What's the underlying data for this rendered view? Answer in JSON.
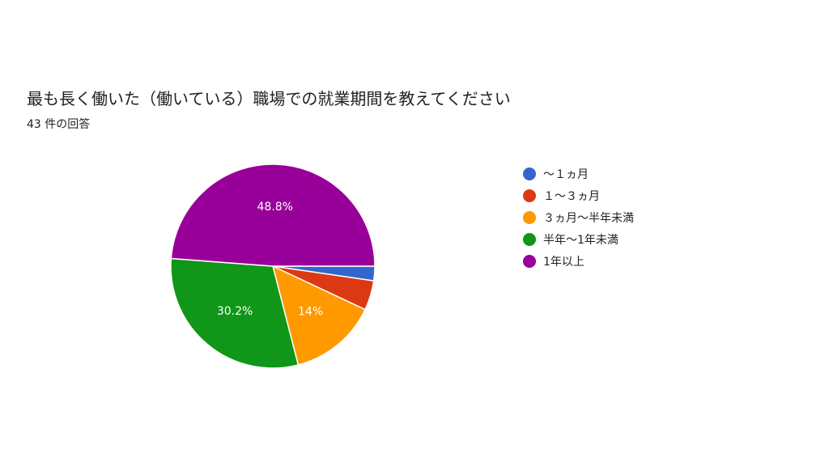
{
  "header": {
    "title": "最も長く働いた（働いている）職場での就業期間を教えてください",
    "subtitle": "43 件の回答"
  },
  "chart_data": {
    "type": "pie",
    "categories": [
      "～１ヵ月",
      "１～３ヵ月",
      "３ヵ月～半年未満",
      "半年～1年未満",
      "1年以上"
    ],
    "values": [
      2.3,
      4.7,
      14,
      30.2,
      48.8
    ],
    "value_unit": "percent",
    "data_labels": [
      "",
      "",
      "14%",
      "30.2%",
      "48.8%"
    ],
    "colors": [
      "#3366cc",
      "#dc3912",
      "#ff9900",
      "#109618",
      "#990099"
    ],
    "legend_position": "right"
  }
}
